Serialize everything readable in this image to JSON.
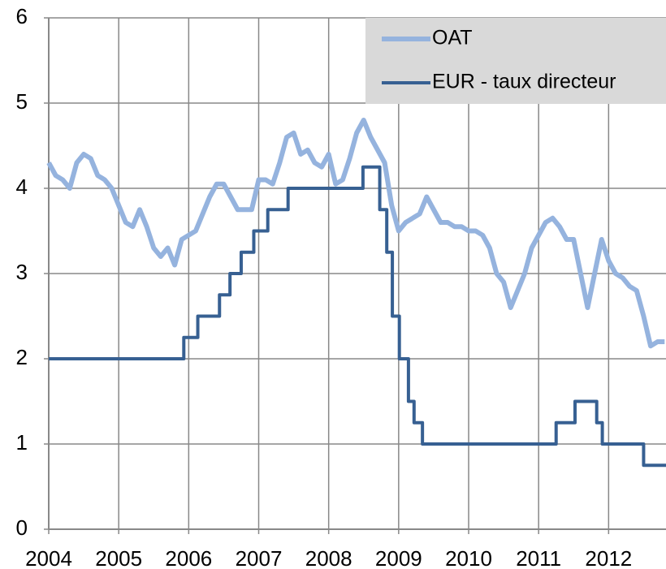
{
  "chart_data": {
    "type": "line",
    "xlim": [
      2004,
      2012.82
    ],
    "xticks": [
      2004,
      2005,
      2006,
      2007,
      2008,
      2009,
      2010,
      2011,
      2012
    ],
    "ylim": [
      0,
      6
    ],
    "yticks": [
      0,
      1,
      2,
      3,
      4,
      5,
      6
    ],
    "grid": true,
    "legend": "top-right",
    "series": [
      {
        "name": "OAT",
        "color": "#95b3de",
        "x": [
          2004.0,
          2004.1,
          2004.2,
          2004.3,
          2004.4,
          2004.5,
          2004.6,
          2004.7,
          2004.8,
          2004.9,
          2005.0,
          2005.1,
          2005.2,
          2005.3,
          2005.4,
          2005.5,
          2005.6,
          2005.7,
          2005.8,
          2005.9,
          2006.0,
          2006.1,
          2006.2,
          2006.3,
          2006.4,
          2006.5,
          2006.6,
          2006.7,
          2006.8,
          2006.9,
          2007.0,
          2007.1,
          2007.2,
          2007.3,
          2007.4,
          2007.5,
          2007.6,
          2007.7,
          2007.8,
          2007.9,
          2008.0,
          2008.1,
          2008.2,
          2008.3,
          2008.4,
          2008.5,
          2008.6,
          2008.7,
          2008.8,
          2008.9,
          2009.0,
          2009.1,
          2009.2,
          2009.3,
          2009.4,
          2009.5,
          2009.6,
          2009.7,
          2009.8,
          2009.9,
          2010.0,
          2010.1,
          2010.2,
          2010.3,
          2010.4,
          2010.5,
          2010.6,
          2010.7,
          2010.8,
          2010.9,
          2011.0,
          2011.1,
          2011.2,
          2011.3,
          2011.4,
          2011.5,
          2011.6,
          2011.7,
          2011.8,
          2011.9,
          2012.0,
          2012.1,
          2012.2,
          2012.3,
          2012.4,
          2012.5,
          2012.6,
          2012.7,
          2012.8
        ],
        "values": [
          4.3,
          4.15,
          4.1,
          4.0,
          4.3,
          4.4,
          4.35,
          4.15,
          4.1,
          4.0,
          3.8,
          3.6,
          3.55,
          3.75,
          3.55,
          3.3,
          3.2,
          3.3,
          3.1,
          3.4,
          3.45,
          3.5,
          3.7,
          3.9,
          4.05,
          4.05,
          3.9,
          3.75,
          3.75,
          3.75,
          4.1,
          4.1,
          4.05,
          4.3,
          4.6,
          4.65,
          4.4,
          4.45,
          4.3,
          4.25,
          4.4,
          4.05,
          4.1,
          4.35,
          4.65,
          4.8,
          4.6,
          4.45,
          4.3,
          3.8,
          3.5,
          3.6,
          3.65,
          3.7,
          3.9,
          3.75,
          3.6,
          3.6,
          3.55,
          3.55,
          3.5,
          3.5,
          3.45,
          3.3,
          3.0,
          2.9,
          2.6,
          2.8,
          3.0,
          3.3,
          3.45,
          3.6,
          3.65,
          3.55,
          3.4,
          3.4,
          3.0,
          2.6,
          3.0,
          3.4,
          3.15,
          3.0,
          2.95,
          2.85,
          2.8,
          2.5,
          2.15,
          2.2,
          2.2
        ]
      },
      {
        "name": "EUR - taux directeur",
        "color": "#376092",
        "x": [
          2004,
          2005.93,
          2005.93,
          2006.13,
          2006.13,
          2006.44,
          2006.44,
          2006.59,
          2006.59,
          2006.75,
          2006.75,
          2006.93,
          2006.93,
          2007.13,
          2007.13,
          2007.42,
          2007.42,
          2008.49,
          2008.49,
          2008.73,
          2008.73,
          2008.83,
          2008.83,
          2008.91,
          2008.91,
          2009.01,
          2009.01,
          2009.14,
          2009.14,
          2009.22,
          2009.22,
          2009.34,
          2009.34,
          2011.25,
          2011.25,
          2011.52,
          2011.52,
          2011.83,
          2011.83,
          2011.91,
          2011.91,
          2012.5,
          2012.5,
          2012.82
        ],
        "values": [
          2,
          2,
          2.25,
          2.25,
          2.5,
          2.5,
          2.75,
          2.75,
          3,
          3,
          3.25,
          3.25,
          3.5,
          3.5,
          3.75,
          3.75,
          4,
          4,
          4.25,
          4.25,
          3.75,
          3.75,
          3.25,
          3.25,
          2.5,
          2.5,
          2,
          2,
          1.5,
          1.5,
          1.25,
          1.25,
          1,
          1,
          1.25,
          1.25,
          1.5,
          1.5,
          1.25,
          1.25,
          1,
          1,
          0.75,
          0.75
        ]
      }
    ]
  }
}
